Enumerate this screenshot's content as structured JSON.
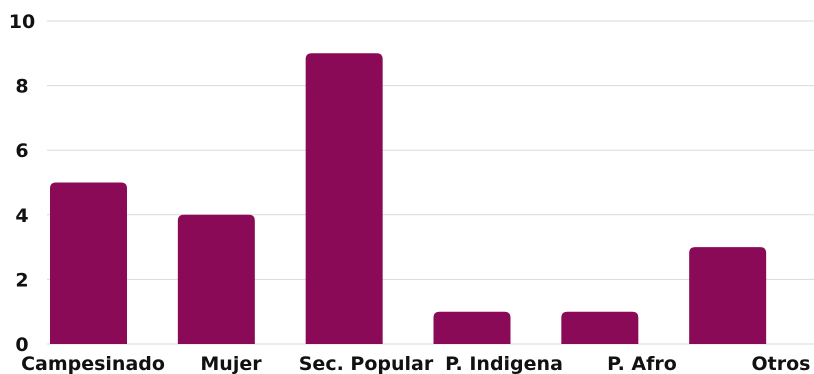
{
  "chart_data": {
    "type": "bar",
    "categories": [
      "Campesinado",
      "Mujer",
      "Sec. Popular",
      "P. Indigena",
      "P. Afro",
      "Otros"
    ],
    "values": [
      5,
      4,
      9,
      1,
      1,
      3
    ],
    "title": "",
    "xlabel": "",
    "ylabel": "",
    "ylim": [
      0,
      10
    ],
    "yticks": [
      0,
      2,
      4,
      6,
      8,
      10
    ],
    "grid": true,
    "legend": "none",
    "colors": {
      "bar": "#8a0a57",
      "grid": "#d9d9d9",
      "text": "#111111"
    }
  }
}
